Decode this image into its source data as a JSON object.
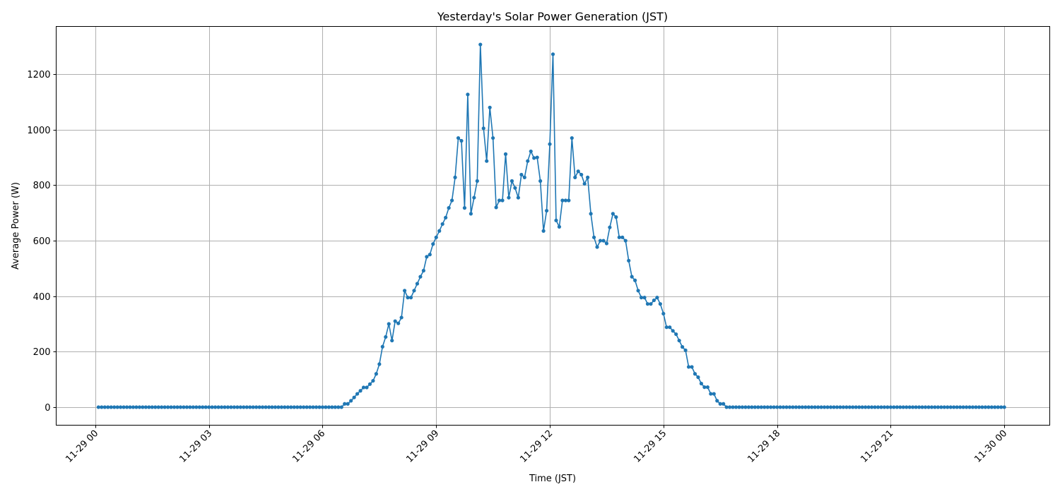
{
  "chart_data": {
    "type": "line",
    "title": "Yesterday's Solar Power Generation (JST)",
    "xlabel": "Time (JST)",
    "ylabel": "Average Power (W)",
    "xlim": [
      "11-28 22:58",
      "11-30 01:12"
    ],
    "ylim": [
      -65,
      1372
    ],
    "grid": true,
    "marker": "dot",
    "color": "#1f77b4",
    "x_ticks": [
      "11-29 00",
      "11-29 03",
      "11-29 06",
      "11-29 09",
      "11-29 12",
      "11-29 15",
      "11-29 18",
      "11-29 21",
      "11-30 00"
    ],
    "y_ticks": [
      "0",
      "200",
      "400",
      "600",
      "800",
      "1000",
      "1200"
    ],
    "x": [
      "11-29 00:05",
      "11-29 00:10",
      "11-29 00:15",
      "11-29 00:20",
      "11-29 00:25",
      "11-29 00:30",
      "11-29 00:35",
      "11-29 00:40",
      "11-29 00:45",
      "11-29 00:50",
      "11-29 00:55",
      "11-29 01:00",
      "11-29 01:05",
      "11-29 01:10",
      "11-29 01:15",
      "11-29 01:20",
      "11-29 01:25",
      "11-29 01:30",
      "11-29 01:35",
      "11-29 01:40",
      "11-29 01:45",
      "11-29 01:50",
      "11-29 01:55",
      "11-29 02:00",
      "11-29 02:05",
      "11-29 02:10",
      "11-29 02:15",
      "11-29 02:20",
      "11-29 02:25",
      "11-29 02:30",
      "11-29 02:35",
      "11-29 02:40",
      "11-29 02:45",
      "11-29 02:50",
      "11-29 02:55",
      "11-29 03:00",
      "11-29 03:05",
      "11-29 03:10",
      "11-29 03:15",
      "11-29 03:20",
      "11-29 03:25",
      "11-29 03:30",
      "11-29 03:35",
      "11-29 03:40",
      "11-29 03:45",
      "11-29 03:50",
      "11-29 03:55",
      "11-29 04:00",
      "11-29 04:05",
      "11-29 04:10",
      "11-29 04:15",
      "11-29 04:20",
      "11-29 04:25",
      "11-29 04:30",
      "11-29 04:35",
      "11-29 04:40",
      "11-29 04:45",
      "11-29 04:50",
      "11-29 04:55",
      "11-29 05:00",
      "11-29 05:05",
      "11-29 05:10",
      "11-29 05:15",
      "11-29 05:20",
      "11-29 05:25",
      "11-29 05:30",
      "11-29 05:35",
      "11-29 05:40",
      "11-29 05:45",
      "11-29 05:50",
      "11-29 05:55",
      "11-29 06:00",
      "11-29 06:05",
      "11-29 06:10",
      "11-29 06:15",
      "11-29 06:20",
      "11-29 06:25",
      "11-29 06:30",
      "11-29 06:35",
      "11-29 06:40",
      "11-29 06:45",
      "11-29 06:50",
      "11-29 06:55",
      "11-29 07:00",
      "11-29 07:05",
      "11-29 07:10",
      "11-29 07:15",
      "11-29 07:20",
      "11-29 07:25",
      "11-29 07:30",
      "11-29 07:35",
      "11-29 07:40",
      "11-29 07:45",
      "11-29 07:50",
      "11-29 07:55",
      "11-29 08:00",
      "11-29 08:05",
      "11-29 08:10",
      "11-29 08:15",
      "11-29 08:20",
      "11-29 08:25",
      "11-29 08:30",
      "11-29 08:35",
      "11-29 08:40",
      "11-29 08:45",
      "11-29 08:50",
      "11-29 08:55",
      "11-29 09:00",
      "11-29 09:05",
      "11-29 09:10",
      "11-29 09:15",
      "11-29 09:20",
      "11-29 09:25",
      "11-29 09:30",
      "11-29 09:35",
      "11-29 09:40",
      "11-29 09:45",
      "11-29 09:50",
      "11-29 09:55",
      "11-29 10:00",
      "11-29 10:05",
      "11-29 10:10",
      "11-29 10:15",
      "11-29 10:20",
      "11-29 10:25",
      "11-29 10:30",
      "11-29 10:35",
      "11-29 10:40",
      "11-29 10:45",
      "11-29 10:50",
      "11-29 10:55",
      "11-29 11:00",
      "11-29 11:05",
      "11-29 11:10",
      "11-29 11:15",
      "11-29 11:20",
      "11-29 11:25",
      "11-29 11:30",
      "11-29 11:35",
      "11-29 11:40",
      "11-29 11:45",
      "11-29 11:50",
      "11-29 11:55",
      "11-29 12:00",
      "11-29 12:05",
      "11-29 12:10",
      "11-29 12:15",
      "11-29 12:20",
      "11-29 12:25",
      "11-29 12:30",
      "11-29 12:35",
      "11-29 12:40",
      "11-29 12:45",
      "11-29 12:50",
      "11-29 12:55",
      "11-29 13:00",
      "11-29 13:05",
      "11-29 13:10",
      "11-29 13:15",
      "11-29 13:20",
      "11-29 13:25",
      "11-29 13:30",
      "11-29 13:35",
      "11-29 13:40",
      "11-29 13:45",
      "11-29 13:50",
      "11-29 13:55",
      "11-29 14:00",
      "11-29 14:05",
      "11-29 14:10",
      "11-29 14:15",
      "11-29 14:20",
      "11-29 14:25",
      "11-29 14:30",
      "11-29 14:35",
      "11-29 14:40",
      "11-29 14:45",
      "11-29 14:50",
      "11-29 14:55",
      "11-29 15:00",
      "11-29 15:05",
      "11-29 15:10",
      "11-29 15:15",
      "11-29 15:20",
      "11-29 15:25",
      "11-29 15:30",
      "11-29 15:35",
      "11-29 15:40",
      "11-29 15:45",
      "11-29 15:50",
      "11-29 15:55",
      "11-29 16:00",
      "11-29 16:05",
      "11-29 16:10",
      "11-29 16:15",
      "11-29 16:20",
      "11-29 16:25",
      "11-29 16:30",
      "11-29 16:35",
      "11-29 16:40",
      "11-29 16:45",
      "11-29 16:50",
      "11-29 16:55",
      "11-29 17:00",
      "11-29 17:05",
      "11-29 17:10",
      "11-29 17:15",
      "11-29 17:20",
      "11-29 17:25",
      "11-29 17:30",
      "11-29 17:35",
      "11-29 17:40",
      "11-29 17:45",
      "11-29 17:50",
      "11-29 17:55",
      "11-29 18:00",
      "11-29 18:05",
      "11-29 18:10",
      "11-29 18:15",
      "11-29 18:20",
      "11-29 18:25",
      "11-29 18:30",
      "11-29 18:35",
      "11-29 18:40",
      "11-29 18:45",
      "11-29 18:50",
      "11-29 18:55",
      "11-29 19:00",
      "11-29 19:05",
      "11-29 19:10",
      "11-29 19:15",
      "11-29 19:20",
      "11-29 19:25",
      "11-29 19:30",
      "11-29 19:35",
      "11-29 19:40",
      "11-29 19:45",
      "11-29 19:50",
      "11-29 19:55",
      "11-29 20:00",
      "11-29 20:05",
      "11-29 20:10",
      "11-29 20:15",
      "11-29 20:20",
      "11-29 20:25",
      "11-29 20:30",
      "11-29 20:35",
      "11-29 20:40",
      "11-29 20:45",
      "11-29 20:50",
      "11-29 20:55",
      "11-29 21:00",
      "11-29 21:05",
      "11-29 21:10",
      "11-29 21:15",
      "11-29 21:20",
      "11-29 21:25",
      "11-29 21:30",
      "11-29 21:35",
      "11-29 21:40",
      "11-29 21:45",
      "11-29 21:50",
      "11-29 21:55",
      "11-29 22:00",
      "11-29 22:05",
      "11-29 22:10",
      "11-29 22:15",
      "11-29 22:20",
      "11-29 22:25",
      "11-29 22:30",
      "11-29 22:35",
      "11-29 22:40",
      "11-29 22:45",
      "11-29 22:50",
      "11-29 22:55",
      "11-29 23:00",
      "11-29 23:05",
      "11-29 23:10",
      "11-29 23:15",
      "11-29 23:20",
      "11-29 23:25",
      "11-29 23:30",
      "11-29 23:35",
      "11-29 23:40",
      "11-29 23:45",
      "11-29 23:50",
      "11-29 23:55",
      "11-30 00:00"
    ],
    "y": [
      0,
      0,
      0,
      0,
      0,
      0,
      0,
      0,
      0,
      0,
      0,
      0,
      0,
      0,
      0,
      0,
      0,
      0,
      0,
      0,
      0,
      0,
      0,
      0,
      0,
      0,
      0,
      0,
      0,
      0,
      0,
      0,
      0,
      0,
      0,
      0,
      0,
      0,
      0,
      0,
      0,
      0,
      0,
      0,
      0,
      0,
      0,
      0,
      0,
      0,
      0,
      0,
      0,
      0,
      0,
      0,
      0,
      0,
      0,
      0,
      0,
      0,
      0,
      0,
      0,
      0,
      0,
      0,
      0,
      0,
      0,
      0,
      0,
      0,
      0,
      0,
      0,
      0,
      12,
      12,
      23,
      35,
      48,
      59,
      71,
      71,
      83,
      95,
      120,
      155,
      218,
      253,
      300,
      240,
      310,
      302,
      323,
      420,
      395,
      395,
      420,
      445,
      470,
      492,
      542,
      550,
      588,
      612,
      635,
      660,
      683,
      718,
      745,
      828,
      970,
      960,
      718,
      1127,
      697,
      755,
      815,
      1307,
      1005,
      887,
      1080,
      970,
      720,
      745,
      745,
      912,
      755,
      815,
      790,
      755,
      838,
      828,
      887,
      922,
      898,
      900,
      815,
      635,
      708,
      948,
      1272,
      673,
      650,
      745,
      745,
      745,
      970,
      828,
      850,
      838,
      805,
      828,
      697,
      612,
      577,
      600,
      600,
      590,
      648,
      697,
      685,
      612,
      612,
      600,
      528,
      470,
      457,
      420,
      395,
      395,
      372,
      372,
      385,
      395,
      372,
      337,
      288,
      288,
      275,
      263,
      240,
      217,
      205,
      145,
      145,
      120,
      108,
      85,
      72,
      72,
      48,
      48,
      23,
      12,
      12,
      0,
      0,
      0,
      0,
      0,
      0,
      0,
      0,
      0,
      0,
      0,
      0,
      0,
      0,
      0,
      0,
      0,
      0,
      0,
      0,
      0,
      0,
      0,
      0,
      0,
      0,
      0,
      0,
      0,
      0,
      0,
      0,
      0,
      0,
      0,
      0,
      0,
      0,
      0,
      0,
      0,
      0,
      0,
      0,
      0,
      0,
      0,
      0,
      0,
      0,
      0,
      0,
      0,
      0,
      0,
      0,
      0,
      0,
      0,
      0,
      0,
      0,
      0,
      0,
      0,
      0,
      0,
      0,
      0,
      0,
      0,
      0,
      0,
      0,
      0,
      0,
      0,
      0,
      0,
      0,
      0,
      0,
      0,
      0,
      0,
      0,
      0,
      0,
      0
    ]
  }
}
